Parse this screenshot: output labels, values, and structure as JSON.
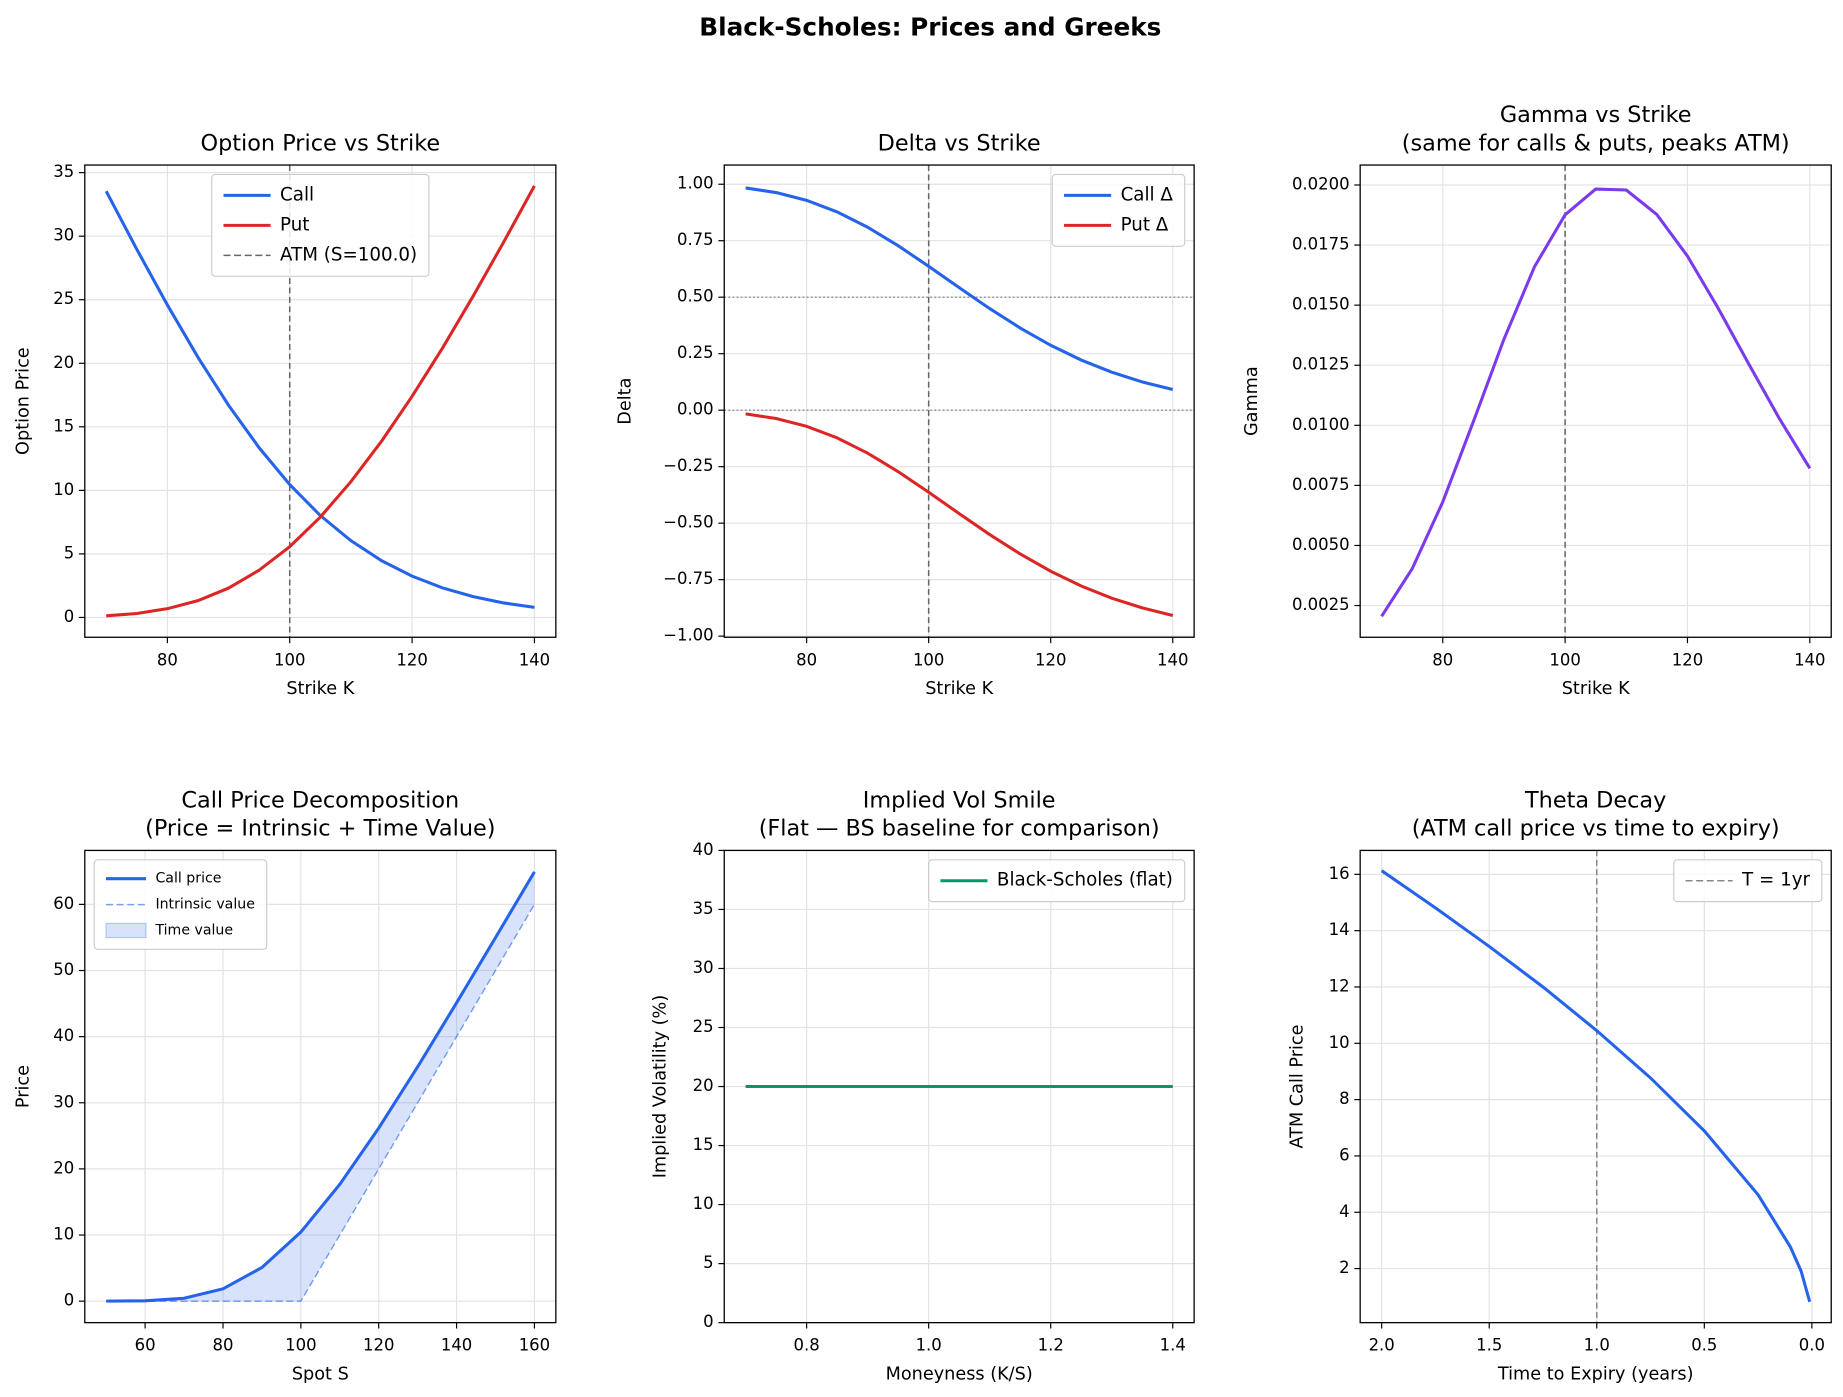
{
  "title": "Black-Scholes: Prices and Greeks",
  "chart_data": [
    {
      "type": "line",
      "title": "Option Price vs Strike",
      "xlabel": "Strike K",
      "ylabel": "Option Price",
      "x": [
        70,
        75,
        80,
        85,
        90,
        95,
        100,
        105,
        110,
        115,
        120,
        125,
        130,
        135,
        140
      ],
      "series": [
        {
          "name": "Call",
          "color": "#2563eb",
          "values": [
            33.54,
            28.97,
            24.59,
            20.47,
            16.7,
            13.35,
            10.45,
            8.02,
            6.04,
            4.47,
            3.25,
            2.32,
            1.64,
            1.14,
            0.79
          ]
        },
        {
          "name": "Put",
          "color": "#dc2626",
          "values": [
            0.13,
            0.31,
            0.69,
            1.32,
            2.31,
            3.72,
            5.57,
            7.9,
            10.68,
            13.86,
            17.4,
            21.22,
            25.3,
            29.56,
            33.96
          ]
        }
      ],
      "vlines": [
        {
          "x": 100,
          "name": "ATM (S=100.0)",
          "color": "#666666"
        }
      ],
      "xlim": [
        66.5,
        143.5
      ],
      "ylim": [
        -1.56,
        35.6
      ],
      "xticks": [
        80,
        100,
        120,
        140
      ],
      "yticks": [
        0,
        5,
        10,
        15,
        20,
        25,
        30,
        35
      ],
      "grid": true,
      "legend": "upper center"
    },
    {
      "type": "line",
      "title": "Delta vs Strike",
      "xlabel": "Strike K",
      "ylabel": "Delta",
      "x": [
        70,
        75,
        80,
        85,
        90,
        95,
        100,
        105,
        110,
        115,
        120,
        125,
        130,
        135,
        140
      ],
      "series": [
        {
          "name": "Call Δ",
          "color": "#2563eb",
          "values": [
            0.9836,
            0.9632,
            0.9286,
            0.8775,
            0.8097,
            0.7279,
            0.6368,
            0.5423,
            0.4496,
            0.3636,
            0.2872,
            0.2219,
            0.1681,
            0.125,
            0.0914
          ]
        },
        {
          "name": "Put Δ",
          "color": "#dc2626",
          "values": [
            -0.0164,
            -0.0368,
            -0.0714,
            -0.1225,
            -0.1903,
            -0.2721,
            -0.3632,
            -0.4577,
            -0.5504,
            -0.6364,
            -0.7128,
            -0.7781,
            -0.8319,
            -0.875,
            -0.9086
          ]
        }
      ],
      "vlines": [
        {
          "x": 100,
          "color": "#666666"
        }
      ],
      "hlines": [
        {
          "y": 0.5,
          "color": "#777777"
        },
        {
          "y": 0,
          "color": "#777777"
        }
      ],
      "xlim": [
        66.5,
        143.5
      ],
      "ylim": [
        -1.005,
        1.085
      ],
      "xticks": [
        80,
        100,
        120,
        140
      ],
      "yticks": [
        {
          "value": -1,
          "label": "−1.00"
        },
        {
          "value": -0.75,
          "label": "−0.75"
        },
        {
          "value": -0.5,
          "label": "−0.50"
        },
        {
          "value": -0.25,
          "label": "−0.25"
        },
        {
          "value": 0,
          "label": "0.00"
        },
        {
          "value": 0.25,
          "label": "0.25"
        },
        {
          "value": 0.5,
          "label": "0.50"
        },
        {
          "value": 0.75,
          "label": "0.75"
        },
        {
          "value": 1,
          "label": "1.00"
        }
      ],
      "grid": true,
      "legend": "upper right"
    },
    {
      "type": "line",
      "title": [
        "Gamma vs Strike",
        "(same for calls & puts, peaks ATM)"
      ],
      "xlabel": "Strike K",
      "ylabel": "Gamma",
      "x": [
        70,
        75,
        80,
        85,
        90,
        95,
        100,
        105,
        110,
        115,
        120,
        125,
        130,
        135,
        140
      ],
      "series": [
        {
          "color": "#7c3aed",
          "values": [
            0.00205,
            0.00403,
            0.00681,
            0.01015,
            0.01358,
            0.0166,
            0.01876,
            0.01983,
            0.01979,
            0.01877,
            0.01704,
            0.01488,
            0.01256,
            0.01029,
            0.00821
          ]
        }
      ],
      "vlines": [
        {
          "x": 100,
          "color": "#666666"
        }
      ],
      "xlim": [
        66.5,
        143.5
      ],
      "ylim": [
        0.00118,
        0.02083
      ],
      "xticks": [
        80,
        100,
        120,
        140
      ],
      "yticks": [
        0.0025,
        {
          "value": 0.005,
          "label": "0.0050"
        },
        0.0075,
        {
          "value": 0.01,
          "label": "0.0100"
        },
        0.0125,
        {
          "value": 0.015,
          "label": "0.0150"
        },
        0.0175,
        {
          "value": 0.02,
          "label": "0.0200"
        }
      ],
      "grid": true
    },
    {
      "type": "line",
      "title": [
        "Call Price Decomposition",
        "(Price = Intrinsic + Time Value)"
      ],
      "xlabel": "Spot S",
      "ylabel": "Price",
      "x": [
        50,
        60,
        70,
        80,
        90,
        100,
        110,
        120,
        130,
        140,
        150,
        160
      ],
      "series": [
        {
          "name": "Call price",
          "color": "#2563eb",
          "values": [
            0.002,
            0.054,
            0.44,
            1.86,
            5.09,
            10.45,
            17.66,
            26.17,
            35.44,
            45.11,
            54.97,
            64.91
          ]
        },
        {
          "name": "Intrinsic value",
          "color": "#2563eb",
          "linestyle": "dashed",
          "values": [
            0,
            0,
            0,
            0,
            0,
            0,
            10,
            20,
            30,
            40,
            50,
            60
          ]
        }
      ],
      "fill": {
        "name": "Time value",
        "color": "#2563eb"
      },
      "xlim": [
        44.5,
        165.5
      ],
      "ylim": [
        -3.25,
        68.16
      ],
      "xticks": [
        60,
        80,
        100,
        120,
        140,
        160
      ],
      "yticks": [
        0,
        10,
        20,
        30,
        40,
        50,
        60
      ],
      "grid": true,
      "legend": "upper left"
    },
    {
      "type": "line",
      "title": [
        "Implied Vol Smile",
        "(Flat — BS baseline for comparison)"
      ],
      "xlabel": "Moneyness (K/S)",
      "ylabel": "Implied Volatility (%)",
      "x": [
        0.7,
        0.8,
        0.9,
        1.0,
        1.1,
        1.2,
        1.3,
        1.4
      ],
      "series": [
        {
          "name": "Black-Scholes (flat)",
          "color": "#059669",
          "values": [
            20,
            20,
            20,
            20,
            20,
            20,
            20,
            20
          ]
        }
      ],
      "xlim": [
        0.665,
        1.435
      ],
      "ylim": [
        0,
        40
      ],
      "xticks": [
        0.8,
        {
          "value": 1,
          "label": "1.0"
        },
        1.2,
        1.4
      ],
      "yticks": [
        0,
        5,
        10,
        15,
        20,
        25,
        30,
        35,
        40
      ],
      "grid": true,
      "legend": "upper right"
    },
    {
      "type": "line",
      "title": [
        "Theta Decay",
        "(ATM call price vs time to expiry)"
      ],
      "xlabel": "Time to Expiry (years)",
      "ylabel": "ATM Call Price",
      "x": [
        2.0,
        1.75,
        1.5,
        1.25,
        1.0,
        0.75,
        0.5,
        0.25,
        0.1,
        0.05,
        0.01
      ],
      "series": [
        {
          "color": "#2563eb",
          "values": [
            16.13,
            14.81,
            13.44,
            12.0,
            10.45,
            8.77,
            6.89,
            4.62,
            2.77,
            1.91,
            0.82
          ]
        }
      ],
      "vlines": [
        {
          "x": 1,
          "name": "T = 1yr",
          "color": "#888888"
        }
      ],
      "xlim": [
        2.1,
        -0.09
      ],
      "ylim": [
        0.08,
        16.85
      ],
      "xticks": [
        {
          "value": 2,
          "label": "2.0"
        },
        1.5,
        {
          "value": 1,
          "label": "1.0"
        },
        0.5,
        {
          "value": 0,
          "label": "0.0"
        }
      ],
      "yticks": [
        2,
        4,
        6,
        8,
        10,
        12,
        14,
        16
      ],
      "grid": true,
      "legend": "upper right"
    }
  ]
}
